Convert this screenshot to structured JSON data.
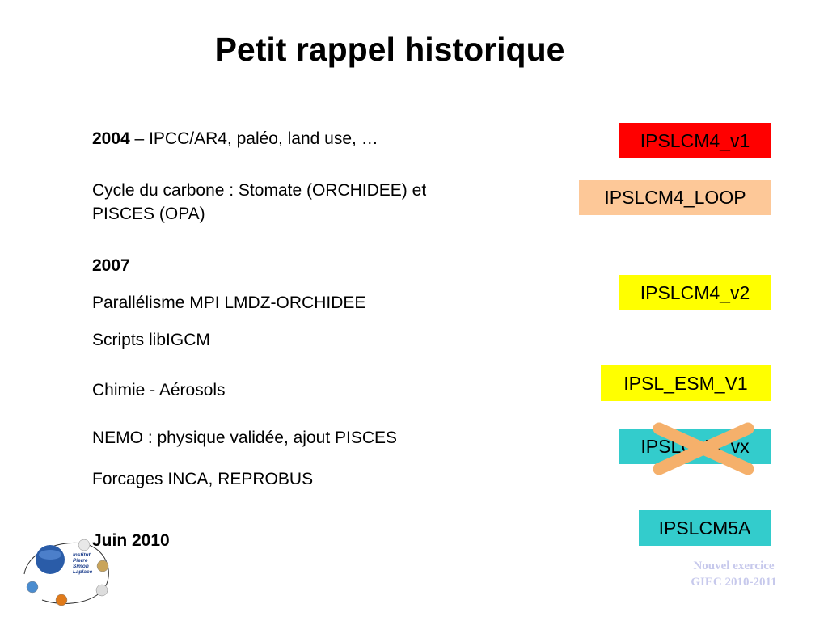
{
  "slide": {
    "title": "Petit rappel historique",
    "lines": [
      {
        "bold": "2004",
        "text": " – IPCC/AR4, paléo, land use, …"
      },
      {
        "bold": "",
        "text": "Cycle du carbone : Stomate (ORCHIDEE) et"
      },
      {
        "bold": "",
        "text": "PISCES (OPA)"
      },
      {
        "bold": "2007",
        "text": ""
      },
      {
        "bold": "",
        "text": "Parallélisme MPI LMDZ-ORCHIDEE"
      },
      {
        "bold": "",
        "text": "Scripts libIGCM"
      },
      {
        "bold": "",
        "text": "Chimie - Aérosols"
      },
      {
        "bold": "",
        "text": "NEMO : physique validée, ajout PISCES"
      },
      {
        "bold": "",
        "text": "Forcages INCA, REPROBUS"
      },
      {
        "bold": "Juin 2010",
        "text": ""
      }
    ],
    "boxes": [
      {
        "label": "IPSLCM4_v1",
        "color": "#ff0000"
      },
      {
        "label": "IPSLCM4_LOOP",
        "color": "#fdc898"
      },
      {
        "label": "IPSLCM4_v2",
        "color": "#ffff00"
      },
      {
        "label": "IPSL_ESM_V1",
        "color": "#ffff00"
      },
      {
        "label": "IPSLCM4_vx",
        "color": "#33cccc",
        "crossed": true,
        "cross_color": "#f5b06b"
      },
      {
        "label": "IPSLCM5A",
        "color": "#33cccc"
      }
    ],
    "footer": [
      "Nouvel exercice",
      "GIEC 2010-2011"
    ],
    "logo": {
      "text": [
        "Institut",
        "Pierre",
        "Simon",
        "Laplace"
      ],
      "icon": "ipsl-logo-icon"
    }
  }
}
